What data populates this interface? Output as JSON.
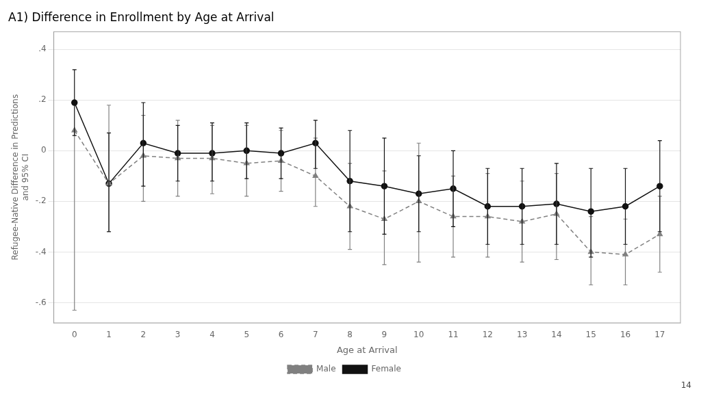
{
  "chart_data": {
    "type": "line",
    "title": "A1) Difference in Enrollment by Age at Arrival",
    "x_label": "Age at Arrival",
    "y_label": "Refugee-Native Difference in Predictions\nand 95% CI",
    "annotation": "14",
    "x": [
      0,
      1,
      2,
      3,
      4,
      5,
      6,
      7,
      8,
      9,
      10,
      11,
      12,
      13,
      14,
      15,
      16,
      17
    ],
    "series": [
      {
        "name": "Male",
        "color": "#808080",
        "line_style": "dashed",
        "marker": "triangle",
        "values": [
          0.08,
          -0.13,
          -0.02,
          -0.03,
          -0.03,
          -0.05,
          -0.04,
          -0.1,
          -0.22,
          -0.27,
          -0.2,
          -0.26,
          -0.26,
          -0.28,
          -0.25,
          -0.4,
          -0.41,
          -0.33
        ],
        "lo": [
          -0.63,
          -0.32,
          -0.2,
          -0.18,
          -0.17,
          -0.18,
          -0.16,
          -0.22,
          -0.39,
          -0.45,
          -0.44,
          -0.42,
          -0.42,
          -0.44,
          -0.43,
          -0.53,
          -0.53,
          -0.48
        ],
        "hi": [
          0.08,
          0.18,
          0.14,
          0.12,
          0.1,
          0.1,
          0.08,
          0.05,
          -0.05,
          -0.08,
          0.03,
          -0.1,
          -0.09,
          -0.12,
          -0.09,
          -0.26,
          -0.27,
          -0.18
        ]
      },
      {
        "name": "Female",
        "color": "#111111",
        "line_style": "solid",
        "marker": "circle",
        "values": [
          0.19,
          -0.13,
          0.03,
          -0.01,
          -0.01,
          0.0,
          -0.01,
          0.03,
          -0.12,
          -0.14,
          -0.17,
          -0.15,
          -0.22,
          -0.22,
          -0.21,
          -0.24,
          -0.22,
          -0.14
        ],
        "lo": [
          0.06,
          -0.32,
          -0.14,
          -0.12,
          -0.12,
          -0.11,
          -0.11,
          -0.07,
          -0.32,
          -0.33,
          -0.32,
          -0.3,
          -0.37,
          -0.37,
          -0.37,
          -0.42,
          -0.37,
          -0.32
        ],
        "hi": [
          0.32,
          0.07,
          0.19,
          0.1,
          0.11,
          0.11,
          0.09,
          0.12,
          0.08,
          0.05,
          -0.02,
          0.0,
          -0.07,
          -0.07,
          -0.05,
          -0.07,
          -0.07,
          0.04
        ]
      }
    ],
    "xlim": [
      -0.6,
      17.6
    ],
    "xticks": [
      0,
      1,
      2,
      3,
      4,
      5,
      6,
      7,
      8,
      9,
      10,
      11,
      12,
      13,
      14,
      15,
      16,
      17
    ],
    "ylim": [
      -0.68,
      0.47
    ],
    "yticks": [
      {
        "value": 0.4,
        "label": ".4"
      },
      {
        "value": 0.2,
        "label": ".2"
      },
      0,
      {
        "value": -0.2,
        "label": "-.2"
      },
      {
        "value": -0.4,
        "label": "-.4"
      },
      {
        "value": -0.6,
        "label": "-.6"
      }
    ],
    "grid": true,
    "legend": "bottom"
  }
}
